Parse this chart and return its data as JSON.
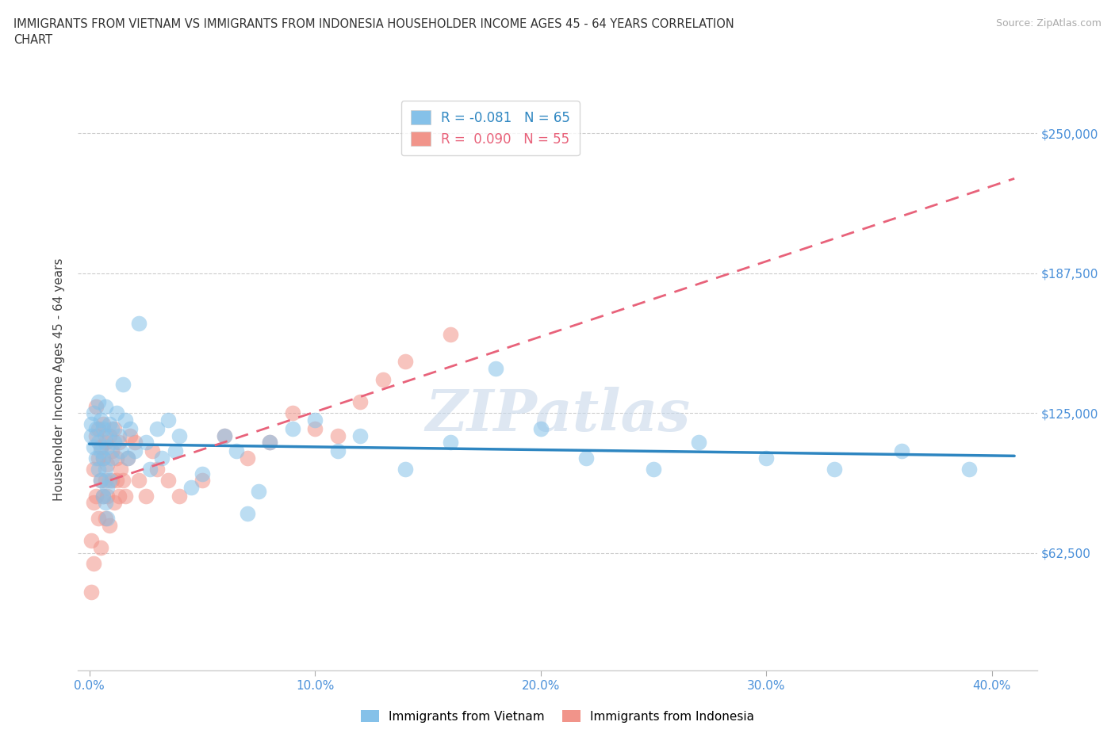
{
  "title": "IMMIGRANTS FROM VIETNAM VS IMMIGRANTS FROM INDONESIA HOUSEHOLDER INCOME AGES 45 - 64 YEARS CORRELATION\nCHART",
  "source": "Source: ZipAtlas.com",
  "xlabel_ticks": [
    "0.0%",
    "10.0%",
    "20.0%",
    "30.0%",
    "40.0%"
  ],
  "xlabel_tick_vals": [
    0.0,
    0.1,
    0.2,
    0.3,
    0.4
  ],
  "ylabel_ticks": [
    "$62,500",
    "$125,000",
    "$187,500",
    "$250,000"
  ],
  "ylabel_tick_vals": [
    62500,
    125000,
    187500,
    250000
  ],
  "ylabel_label": "Householder Income Ages 45 - 64 years",
  "xlim": [
    -0.005,
    0.42
  ],
  "ylim": [
    10000,
    270000
  ],
  "vietnam_R": -0.081,
  "vietnam_N": 65,
  "indonesia_R": 0.09,
  "indonesia_N": 55,
  "vietnam_color": "#85c1e9",
  "indonesia_color": "#f1948a",
  "vietnam_line_color": "#2e86c1",
  "indonesia_line_color": "#e8627a",
  "watermark_text": "ZIPatlas",
  "vietnam_x": [
    0.001,
    0.001,
    0.002,
    0.002,
    0.003,
    0.003,
    0.004,
    0.004,
    0.004,
    0.005,
    0.005,
    0.005,
    0.006,
    0.006,
    0.006,
    0.007,
    0.007,
    0.007,
    0.007,
    0.008,
    0.008,
    0.008,
    0.009,
    0.009,
    0.01,
    0.01,
    0.011,
    0.012,
    0.013,
    0.014,
    0.015,
    0.016,
    0.017,
    0.018,
    0.02,
    0.022,
    0.025,
    0.027,
    0.03,
    0.032,
    0.035,
    0.038,
    0.04,
    0.045,
    0.05,
    0.06,
    0.065,
    0.07,
    0.075,
    0.08,
    0.09,
    0.1,
    0.11,
    0.12,
    0.14,
    0.16,
    0.18,
    0.2,
    0.22,
    0.25,
    0.27,
    0.3,
    0.33,
    0.36,
    0.39
  ],
  "vietnam_y": [
    120000,
    115000,
    110000,
    125000,
    105000,
    118000,
    100000,
    112000,
    130000,
    95000,
    108000,
    122000,
    88000,
    105000,
    118000,
    85000,
    100000,
    115000,
    128000,
    78000,
    92000,
    110000,
    95000,
    120000,
    105000,
    118000,
    112000,
    125000,
    115000,
    108000,
    138000,
    122000,
    105000,
    118000,
    108000,
    165000,
    112000,
    100000,
    118000,
    105000,
    122000,
    108000,
    115000,
    92000,
    98000,
    115000,
    108000,
    80000,
    90000,
    112000,
    118000,
    122000,
    108000,
    115000,
    100000,
    112000,
    145000,
    118000,
    105000,
    100000,
    112000,
    105000,
    100000,
    108000,
    100000
  ],
  "indonesia_x": [
    0.001,
    0.001,
    0.002,
    0.002,
    0.002,
    0.003,
    0.003,
    0.003,
    0.004,
    0.004,
    0.004,
    0.005,
    0.005,
    0.005,
    0.006,
    0.006,
    0.006,
    0.007,
    0.007,
    0.007,
    0.008,
    0.008,
    0.009,
    0.009,
    0.01,
    0.01,
    0.011,
    0.011,
    0.012,
    0.012,
    0.013,
    0.013,
    0.014,
    0.015,
    0.016,
    0.017,
    0.018,
    0.02,
    0.022,
    0.025,
    0.028,
    0.03,
    0.035,
    0.04,
    0.05,
    0.06,
    0.07,
    0.08,
    0.09,
    0.1,
    0.11,
    0.12,
    0.13,
    0.14,
    0.16
  ],
  "indonesia_y": [
    45000,
    68000,
    85000,
    100000,
    58000,
    115000,
    128000,
    88000,
    105000,
    118000,
    78000,
    95000,
    110000,
    65000,
    120000,
    88000,
    105000,
    78000,
    112000,
    95000,
    88000,
    102000,
    75000,
    115000,
    95000,
    108000,
    85000,
    118000,
    95000,
    105000,
    88000,
    112000,
    100000,
    95000,
    88000,
    105000,
    115000,
    112000,
    95000,
    88000,
    108000,
    100000,
    95000,
    88000,
    95000,
    115000,
    105000,
    112000,
    125000,
    118000,
    115000,
    130000,
    140000,
    148000,
    160000
  ]
}
